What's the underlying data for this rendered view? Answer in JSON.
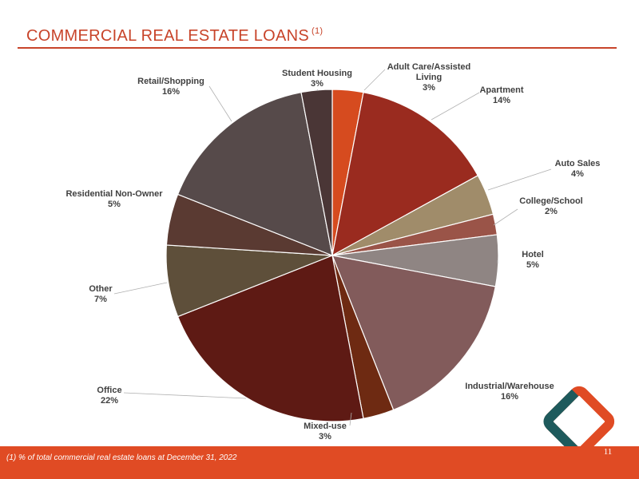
{
  "header": {
    "title": "COMMERCIAL  REAL ESTATE LOANS",
    "title_note": "(1)"
  },
  "footer": {
    "footnote": "(1)  % of total commercial real estate loans at December 31, 2022",
    "page_number": "11"
  },
  "colors": {
    "accent": "#e04b24",
    "title": "#c8442a",
    "logo_teal": "#1e5a5c",
    "logo_orange": "#e04b24"
  },
  "logo": {
    "icon": "diamond-logo-icon"
  },
  "chart_data": {
    "type": "pie",
    "start": "12 o'clock",
    "direction": "clockwise",
    "slices": [
      {
        "label": "Adult Care/Assisted Living",
        "label_lines": [
          "Adult Care/Assisted",
          "Living"
        ],
        "value": 3,
        "display": "3%",
        "color": "#d64b1f"
      },
      {
        "label": "Apartment",
        "label_lines": [
          "Apartment"
        ],
        "value": 14,
        "display": "14%",
        "color": "#9a2b1f"
      },
      {
        "label": "Auto Sales",
        "label_lines": [
          "Auto Sales"
        ],
        "value": 4,
        "display": "4%",
        "color": "#a08c6a"
      },
      {
        "label": "College/School",
        "label_lines": [
          "College/School"
        ],
        "value": 2,
        "display": "2%",
        "color": "#9a5448"
      },
      {
        "label": "Hotel",
        "label_lines": [
          "Hotel"
        ],
        "value": 5,
        "display": "5%",
        "color": "#8f8583"
      },
      {
        "label": "Industrial/Warehouse",
        "label_lines": [
          "Industrial/Warehouse"
        ],
        "value": 16,
        "display": "16%",
        "color": "#825b5b"
      },
      {
        "label": "Mixed-use",
        "label_lines": [
          "Mixed-use"
        ],
        "value": 3,
        "display": "3%",
        "color": "#6e2a12"
      },
      {
        "label": "Office",
        "label_lines": [
          "Office"
        ],
        "value": 22,
        "display": "22%",
        "color": "#5e1a14"
      },
      {
        "label": "Other",
        "label_lines": [
          "Other"
        ],
        "value": 7,
        "display": "7%",
        "color": "#5e4f3a"
      },
      {
        "label": "Residential Non-Owner",
        "label_lines": [
          "Residential Non-Owner"
        ],
        "value": 5,
        "display": "5%",
        "color": "#5a3a32"
      },
      {
        "label": "Retail/Shopping",
        "label_lines": [
          "Retail/Shopping"
        ],
        "value": 16,
        "display": "16%",
        "color": "#564a4a"
      },
      {
        "label": "Student Housing",
        "label_lines": [
          "Student Housing"
        ],
        "value": 3,
        "display": "3%",
        "color": "#4a3636"
      }
    ]
  }
}
